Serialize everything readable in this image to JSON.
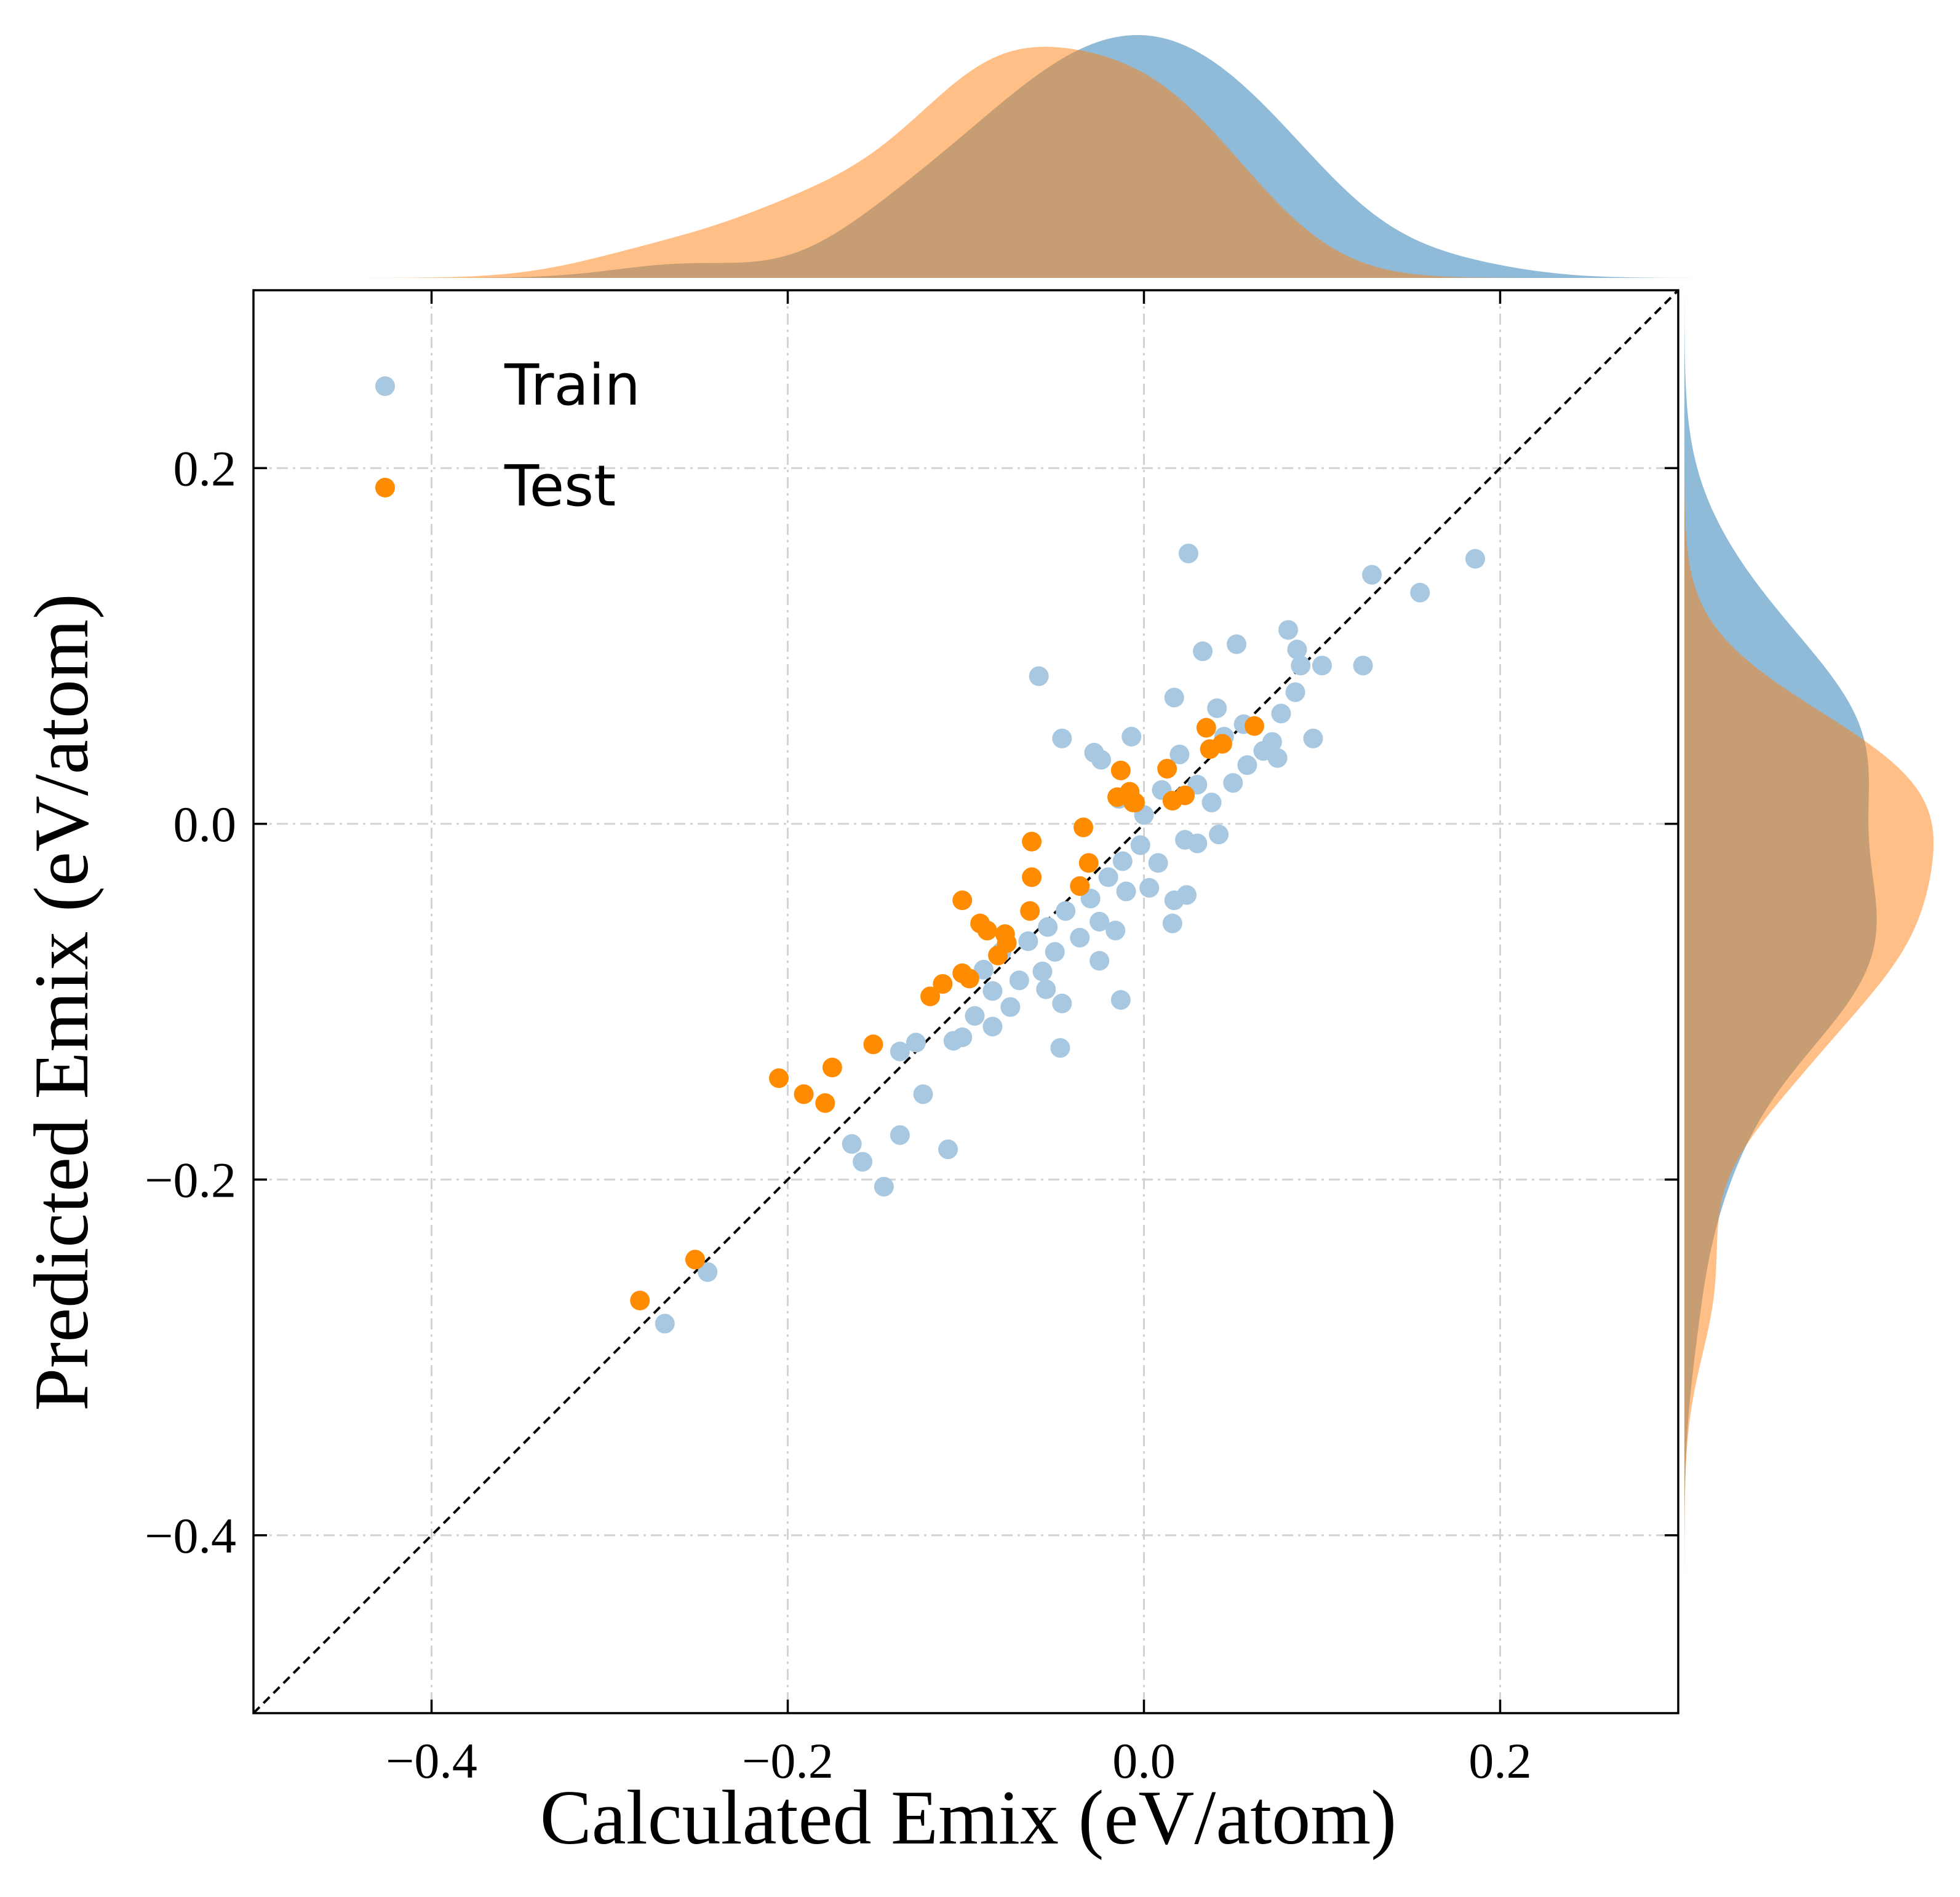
{
  "chart_data": {
    "type": "scatter",
    "title": "",
    "xlabel": "Calculated Emix (eV/atom)",
    "ylabel": "Predicted Emix (eV/atom)",
    "xlim": [
      -0.5,
      0.3
    ],
    "ylim": [
      -0.5,
      0.3
    ],
    "xticks": [
      -0.4,
      -0.2,
      0.0,
      0.2
    ],
    "yticks": [
      -0.4,
      -0.2,
      0.0,
      0.2
    ],
    "xtick_labels": [
      "−0.4",
      "−0.2",
      "0.0",
      "0.2"
    ],
    "ytick_labels": [
      "−0.4",
      "−0.2",
      "0.0",
      "0.2"
    ],
    "grid": true,
    "legend_position": "top-left",
    "reference_line": "y = x",
    "marginal_density": [
      "top",
      "right"
    ],
    "colors": {
      "train": "#a7c8e0",
      "test": "#ff8c00",
      "train_kde": "#90bbd8",
      "test_kde": "#ffc083",
      "overlap_kde": "#c79d74"
    },
    "series": [
      {
        "name": "Train",
        "points": [
          [
            0.186,
            0.149
          ],
          [
            0.155,
            0.13
          ],
          [
            0.128,
            0.14
          ],
          [
            0.123,
            0.089
          ],
          [
            0.025,
            0.152
          ],
          [
            -0.059,
            0.083
          ],
          [
            0.033,
            0.097
          ],
          [
            0.052,
            0.101
          ],
          [
            0.081,
            0.109
          ],
          [
            0.086,
            0.098
          ],
          [
            0.088,
            0.089
          ],
          [
            0.1,
            0.089
          ],
          [
            0.085,
            0.074
          ],
          [
            0.077,
            0.062
          ],
          [
            0.095,
            0.048
          ],
          [
            0.017,
            0.071
          ],
          [
            0.041,
            0.065
          ],
          [
            0.056,
            0.056
          ],
          [
            0.072,
            0.046
          ],
          [
            0.067,
            0.041
          ],
          [
            0.075,
            0.037
          ],
          [
            -0.007,
            0.049
          ],
          [
            -0.046,
            0.048
          ],
          [
            -0.028,
            0.04
          ],
          [
            -0.024,
            0.036
          ],
          [
            0.02,
            0.039
          ],
          [
            0.045,
            0.049
          ],
          [
            0.058,
            0.033
          ],
          [
            0.05,
            0.023
          ],
          [
            0.03,
            0.022
          ],
          [
            0.01,
            0.019
          ],
          [
            -0.014,
            0.014
          ],
          [
            0.038,
            0.012
          ],
          [
            0.0,
            0.005
          ],
          [
            0.042,
            -0.006
          ],
          [
            0.023,
            -0.009
          ],
          [
            -0.002,
            -0.012
          ],
          [
            -0.012,
            -0.021
          ],
          [
            0.03,
            -0.011
          ],
          [
            0.008,
            -0.022
          ],
          [
            -0.02,
            -0.03
          ],
          [
            0.024,
            -0.04
          ],
          [
            0.017,
            -0.043
          ],
          [
            -0.01,
            -0.038
          ],
          [
            0.003,
            -0.036
          ],
          [
            -0.03,
            -0.042
          ],
          [
            -0.044,
            -0.049
          ],
          [
            -0.025,
            -0.055
          ],
          [
            -0.054,
            -0.058
          ],
          [
            0.016,
            -0.056
          ],
          [
            -0.036,
            -0.064
          ],
          [
            -0.016,
            -0.06
          ],
          [
            -0.065,
            -0.066
          ],
          [
            -0.088,
            -0.06
          ],
          [
            -0.08,
            -0.072
          ],
          [
            -0.05,
            -0.072
          ],
          [
            -0.025,
            -0.077
          ],
          [
            -0.057,
            -0.083
          ],
          [
            -0.09,
            -0.082
          ],
          [
            -0.07,
            -0.088
          ],
          [
            -0.055,
            -0.093
          ],
          [
            -0.085,
            -0.094
          ],
          [
            -0.046,
            -0.101
          ],
          [
            -0.013,
            -0.099
          ],
          [
            -0.075,
            -0.103
          ],
          [
            -0.095,
            -0.108
          ],
          [
            -0.085,
            -0.114
          ],
          [
            -0.102,
            -0.12
          ],
          [
            -0.107,
            -0.122
          ],
          [
            -0.128,
            -0.123
          ],
          [
            -0.137,
            -0.128
          ],
          [
            -0.047,
            -0.126
          ],
          [
            -0.124,
            -0.152
          ],
          [
            -0.164,
            -0.18
          ],
          [
            -0.137,
            -0.175
          ],
          [
            -0.11,
            -0.183
          ],
          [
            -0.158,
            -0.19
          ],
          [
            -0.146,
            -0.204
          ],
          [
            -0.245,
            -0.252
          ],
          [
            -0.269,
            -0.281
          ]
        ]
      },
      {
        "name": "Test",
        "points": [
          [
            -0.283,
            -0.268
          ],
          [
            -0.252,
            -0.245
          ],
          [
            -0.205,
            -0.143
          ],
          [
            -0.191,
            -0.152
          ],
          [
            -0.179,
            -0.157
          ],
          [
            -0.175,
            -0.137
          ],
          [
            -0.152,
            -0.124
          ],
          [
            -0.12,
            -0.097
          ],
          [
            -0.113,
            -0.09
          ],
          [
            -0.102,
            -0.084
          ],
          [
            -0.098,
            -0.087
          ],
          [
            -0.102,
            -0.043
          ],
          [
            -0.092,
            -0.056
          ],
          [
            -0.088,
            -0.06
          ],
          [
            -0.082,
            -0.074
          ],
          [
            -0.077,
            -0.067
          ],
          [
            -0.078,
            -0.062
          ],
          [
            -0.064,
            -0.049
          ],
          [
            -0.063,
            -0.03
          ],
          [
            -0.063,
            -0.01
          ],
          [
            -0.034,
            -0.002
          ],
          [
            -0.031,
            -0.022
          ],
          [
            -0.036,
            -0.035
          ],
          [
            -0.015,
            0.015
          ],
          [
            -0.008,
            0.018
          ],
          [
            -0.005,
            0.012
          ],
          [
            -0.006,
            0.012
          ],
          [
            -0.013,
            0.03
          ],
          [
            0.013,
            0.031
          ],
          [
            0.016,
            0.013
          ],
          [
            0.023,
            0.016
          ],
          [
            0.035,
            0.054
          ],
          [
            0.044,
            0.045
          ],
          [
            0.037,
            0.042
          ],
          [
            0.062,
            0.055
          ]
        ]
      }
    ]
  }
}
